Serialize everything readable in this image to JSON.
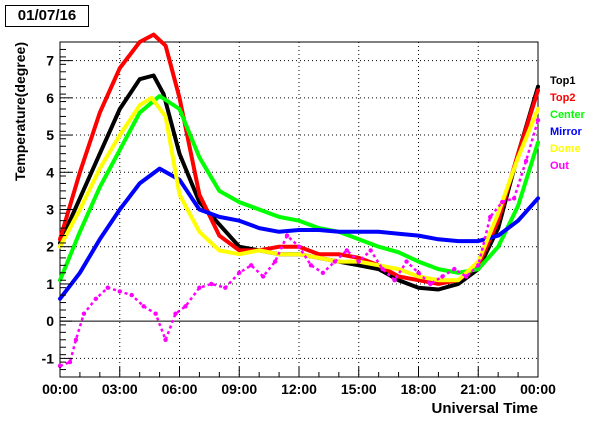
{
  "date_label": "01/07/16",
  "chart_data": {
    "type": "line",
    "title": "",
    "xlabel": "Universal Time",
    "ylabel": "Temperature(degree)",
    "xlim": [
      0,
      24
    ],
    "ylim": [
      -1.5,
      7.5
    ],
    "x_ticks": [
      {
        "value": 0,
        "label": "00:00"
      },
      {
        "value": 3,
        "label": "03:00"
      },
      {
        "value": 6,
        "label": "06:00"
      },
      {
        "value": 9,
        "label": "09:00"
      },
      {
        "value": 12,
        "label": "12:00"
      },
      {
        "value": 15,
        "label": "15:00"
      },
      {
        "value": 18,
        "label": "18:00"
      },
      {
        "value": 21,
        "label": "21:00"
      },
      {
        "value": 24,
        "label": "00:00"
      }
    ],
    "y_ticks": [
      {
        "value": -1,
        "label": "-1"
      },
      {
        "value": 0,
        "label": "0"
      },
      {
        "value": 1,
        "label": "1"
      },
      {
        "value": 2,
        "label": "2"
      },
      {
        "value": 3,
        "label": "3"
      },
      {
        "value": 4,
        "label": "4"
      },
      {
        "value": 5,
        "label": "5"
      },
      {
        "value": 6,
        "label": "6"
      },
      {
        "value": 7,
        "label": "7"
      }
    ],
    "grid": "horizontal-dotted",
    "legend_position": "right",
    "series": [
      {
        "name": "Top1",
        "color": "#000000",
        "points": [
          [
            0,
            2.1
          ],
          [
            1,
            3.3
          ],
          [
            2,
            4.5
          ],
          [
            3,
            5.7
          ],
          [
            4,
            6.5
          ],
          [
            4.7,
            6.6
          ],
          [
            5.2,
            6.1
          ],
          [
            6,
            4.5
          ],
          [
            7,
            3.2
          ],
          [
            8,
            2.6
          ],
          [
            9,
            2.0
          ],
          [
            10,
            1.9
          ],
          [
            11,
            1.8
          ],
          [
            12,
            1.8
          ],
          [
            13,
            1.7
          ],
          [
            14,
            1.6
          ],
          [
            15,
            1.5
          ],
          [
            16,
            1.4
          ],
          [
            17,
            1.1
          ],
          [
            18,
            0.9
          ],
          [
            19,
            0.85
          ],
          [
            20,
            1.0
          ],
          [
            21,
            1.4
          ],
          [
            22,
            2.5
          ],
          [
            23,
            4.5
          ],
          [
            24,
            6.3
          ]
        ]
      },
      {
        "name": "Top2",
        "color": "#ff0000",
        "points": [
          [
            0,
            2.2
          ],
          [
            1,
            4.0
          ],
          [
            2,
            5.6
          ],
          [
            3,
            6.8
          ],
          [
            4,
            7.5
          ],
          [
            4.7,
            7.7
          ],
          [
            5.3,
            7.4
          ],
          [
            6,
            6.0
          ],
          [
            7,
            3.4
          ],
          [
            8,
            2.3
          ],
          [
            9,
            1.9
          ],
          [
            10,
            1.9
          ],
          [
            11,
            2.0
          ],
          [
            12,
            2.0
          ],
          [
            13,
            1.8
          ],
          [
            14,
            1.8
          ],
          [
            15,
            1.7
          ],
          [
            16,
            1.5
          ],
          [
            17,
            1.2
          ],
          [
            18,
            1.1
          ],
          [
            19,
            1.0
          ],
          [
            20,
            1.1
          ],
          [
            21,
            1.5
          ],
          [
            22,
            2.7
          ],
          [
            23,
            4.5
          ],
          [
            24,
            6.2
          ]
        ]
      },
      {
        "name": "Center",
        "color": "#00ff00",
        "points": [
          [
            0,
            1.1
          ],
          [
            1,
            2.4
          ],
          [
            2,
            3.6
          ],
          [
            3,
            4.6
          ],
          [
            4,
            5.6
          ],
          [
            5,
            6.05
          ],
          [
            6,
            5.7
          ],
          [
            7,
            4.4
          ],
          [
            8,
            3.5
          ],
          [
            9,
            3.2
          ],
          [
            10,
            3.0
          ],
          [
            11,
            2.8
          ],
          [
            12,
            2.7
          ],
          [
            13,
            2.5
          ],
          [
            14,
            2.4
          ],
          [
            15,
            2.2
          ],
          [
            16,
            2.0
          ],
          [
            17,
            1.85
          ],
          [
            18,
            1.6
          ],
          [
            19,
            1.4
          ],
          [
            20,
            1.3
          ],
          [
            21,
            1.4
          ],
          [
            22,
            2.0
          ],
          [
            23,
            3.1
          ],
          [
            24,
            4.8
          ]
        ]
      },
      {
        "name": "Mirror",
        "color": "#0000ff",
        "points": [
          [
            0,
            0.6
          ],
          [
            1,
            1.3
          ],
          [
            2,
            2.2
          ],
          [
            3,
            3.0
          ],
          [
            4,
            3.7
          ],
          [
            5,
            4.1
          ],
          [
            6,
            3.8
          ],
          [
            7,
            3.0
          ],
          [
            8,
            2.8
          ],
          [
            9,
            2.7
          ],
          [
            10,
            2.5
          ],
          [
            11,
            2.4
          ],
          [
            12,
            2.45
          ],
          [
            13,
            2.45
          ],
          [
            14,
            2.4
          ],
          [
            15,
            2.4
          ],
          [
            16,
            2.4
          ],
          [
            17,
            2.35
          ],
          [
            18,
            2.3
          ],
          [
            19,
            2.2
          ],
          [
            20,
            2.15
          ],
          [
            21,
            2.15
          ],
          [
            22,
            2.3
          ],
          [
            23,
            2.7
          ],
          [
            24,
            3.3
          ]
        ]
      },
      {
        "name": "Dome",
        "color": "#ffff00",
        "points": [
          [
            0,
            2.0
          ],
          [
            1,
            3.0
          ],
          [
            2,
            4.1
          ],
          [
            3,
            5.0
          ],
          [
            4,
            5.8
          ],
          [
            4.6,
            6.0
          ],
          [
            5.3,
            5.5
          ],
          [
            6,
            3.4
          ],
          [
            7,
            2.4
          ],
          [
            8,
            1.9
          ],
          [
            9,
            1.8
          ],
          [
            10,
            1.9
          ],
          [
            11,
            1.8
          ],
          [
            12,
            1.8
          ],
          [
            13,
            1.7
          ],
          [
            14,
            1.6
          ],
          [
            15,
            1.6
          ],
          [
            16,
            1.5
          ],
          [
            17,
            1.4
          ],
          [
            18,
            1.2
          ],
          [
            19,
            1.1
          ],
          [
            20,
            1.1
          ],
          [
            21,
            1.6
          ],
          [
            22,
            2.9
          ],
          [
            23,
            4.4
          ],
          [
            24,
            5.7
          ]
        ]
      },
      {
        "name": "Out",
        "color": "#ff00ff",
        "points": [
          [
            0,
            -1.2
          ],
          [
            0.5,
            -1.1
          ],
          [
            0.8,
            -0.5
          ],
          [
            1.2,
            0.2
          ],
          [
            1.8,
            0.6
          ],
          [
            2.4,
            0.9
          ],
          [
            3,
            0.8
          ],
          [
            3.6,
            0.7
          ],
          [
            4.2,
            0.4
          ],
          [
            4.8,
            0.2
          ],
          [
            5.3,
            -0.5
          ],
          [
            5.8,
            0.2
          ],
          [
            6.3,
            0.4
          ],
          [
            7,
            0.9
          ],
          [
            7.6,
            1.0
          ],
          [
            8.3,
            0.9
          ],
          [
            9,
            1.3
          ],
          [
            9.6,
            1.5
          ],
          [
            10.2,
            1.2
          ],
          [
            10.8,
            1.6
          ],
          [
            11.4,
            2.3
          ],
          [
            12,
            2.0
          ],
          [
            12.6,
            1.5
          ],
          [
            13.2,
            1.3
          ],
          [
            13.8,
            1.6
          ],
          [
            14.4,
            1.9
          ],
          [
            15,
            1.6
          ],
          [
            15.6,
            1.9
          ],
          [
            16.2,
            1.4
          ],
          [
            16.8,
            1.1
          ],
          [
            17.4,
            1.6
          ],
          [
            18,
            1.3
          ],
          [
            18.6,
            1.0
          ],
          [
            19.2,
            1.2
          ],
          [
            19.8,
            1.4
          ],
          [
            20.4,
            1.2
          ],
          [
            21,
            1.5
          ],
          [
            21.6,
            2.8
          ],
          [
            22.2,
            3.2
          ],
          [
            22.8,
            3.3
          ],
          [
            23.4,
            4.3
          ],
          [
            24,
            5.4
          ]
        ]
      }
    ]
  }
}
